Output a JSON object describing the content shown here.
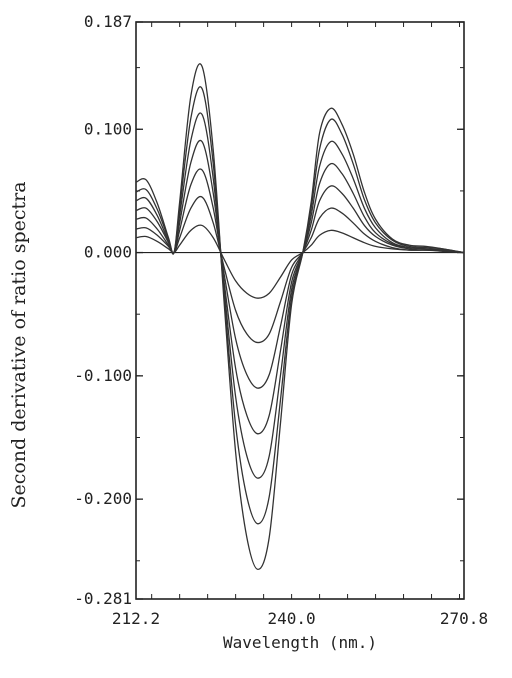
{
  "chart_data": {
    "type": "line",
    "xlabel": "Wavelength (nm.)",
    "ylabel": "Second derivative of ratio spectra",
    "xlim": [
      212.2,
      270.8
    ],
    "ylim": [
      -0.281,
      0.187
    ],
    "x_ticks": [
      "212.2",
      "240.0",
      "270.8"
    ],
    "y_ticks": [
      "0.187",
      "0.100",
      "0.000",
      "-0.100",
      "-0.200",
      "-0.281"
    ],
    "zero_line": true,
    "grid": false,
    "legend": "none",
    "x": [
      212.2,
      214.0,
      216.0,
      218.0,
      219.0,
      220.0,
      222.0,
      224.0,
      226.0,
      228.0,
      230.0,
      232.0,
      234.0,
      236.0,
      238.0,
      240.0,
      242.0,
      243.5,
      245.0,
      247.0,
      249.0,
      251.0,
      253.0,
      255.0,
      258.0,
      261.0,
      264.0,
      267.0,
      270.8
    ],
    "series": [
      {
        "values": [
          0.012,
          0.013,
          0.009,
          0.003,
          0.0,
          0.006,
          0.018,
          0.022,
          0.012,
          -0.006,
          -0.023,
          -0.033,
          -0.037,
          -0.033,
          -0.02,
          -0.006,
          0.0,
          0.006,
          0.014,
          0.018,
          0.016,
          0.012,
          0.008,
          0.005,
          0.003,
          0.002,
          0.002,
          0.001,
          0.0
        ]
      },
      {
        "values": [
          0.019,
          0.02,
          0.014,
          0.005,
          0.0,
          0.012,
          0.036,
          0.045,
          0.024,
          -0.013,
          -0.047,
          -0.066,
          -0.073,
          -0.066,
          -0.04,
          -0.012,
          0.0,
          0.012,
          0.028,
          0.036,
          0.032,
          0.024,
          0.015,
          0.009,
          0.004,
          0.002,
          0.002,
          0.002,
          0.0
        ]
      },
      {
        "values": [
          0.027,
          0.028,
          0.019,
          0.006,
          0.0,
          0.018,
          0.055,
          0.067,
          0.036,
          -0.019,
          -0.07,
          -0.099,
          -0.11,
          -0.099,
          -0.06,
          -0.018,
          0.0,
          0.018,
          0.042,
          0.054,
          0.048,
          0.036,
          0.022,
          0.013,
          0.006,
          0.003,
          0.002,
          0.002,
          0.0
        ]
      },
      {
        "values": [
          0.034,
          0.036,
          0.025,
          0.008,
          0.0,
          0.024,
          0.073,
          0.09,
          0.048,
          -0.026,
          -0.094,
          -0.132,
          -0.147,
          -0.132,
          -0.08,
          -0.024,
          0.0,
          0.024,
          0.056,
          0.072,
          0.064,
          0.048,
          0.029,
          0.016,
          0.007,
          0.004,
          0.003,
          0.002,
          0.0
        ]
      },
      {
        "values": [
          0.042,
          0.044,
          0.03,
          0.009,
          0.0,
          0.03,
          0.091,
          0.112,
          0.06,
          -0.032,
          -0.117,
          -0.165,
          -0.183,
          -0.165,
          -0.1,
          -0.03,
          0.0,
          0.03,
          0.07,
          0.09,
          0.08,
          0.06,
          0.036,
          0.02,
          0.008,
          0.004,
          0.003,
          0.002,
          0.0
        ]
      },
      {
        "values": [
          0.049,
          0.051,
          0.035,
          0.011,
          0.0,
          0.036,
          0.109,
          0.133,
          0.072,
          -0.038,
          -0.14,
          -0.198,
          -0.22,
          -0.198,
          -0.12,
          -0.036,
          0.0,
          0.036,
          0.084,
          0.108,
          0.096,
          0.072,
          0.043,
          0.024,
          0.01,
          0.005,
          0.004,
          0.003,
          0.0
        ]
      },
      {
        "values": [
          0.057,
          0.059,
          0.04,
          0.012,
          0.0,
          0.041,
          0.127,
          0.151,
          0.083,
          -0.044,
          -0.162,
          -0.231,
          -0.257,
          -0.231,
          -0.139,
          -0.042,
          0.0,
          0.041,
          0.097,
          0.117,
          0.104,
          0.08,
          0.049,
          0.027,
          0.011,
          0.006,
          0.005,
          0.003,
          0.0
        ]
      }
    ]
  },
  "colors": {
    "line": "#333333",
    "axis": "#222222",
    "background": "#ffffff"
  }
}
